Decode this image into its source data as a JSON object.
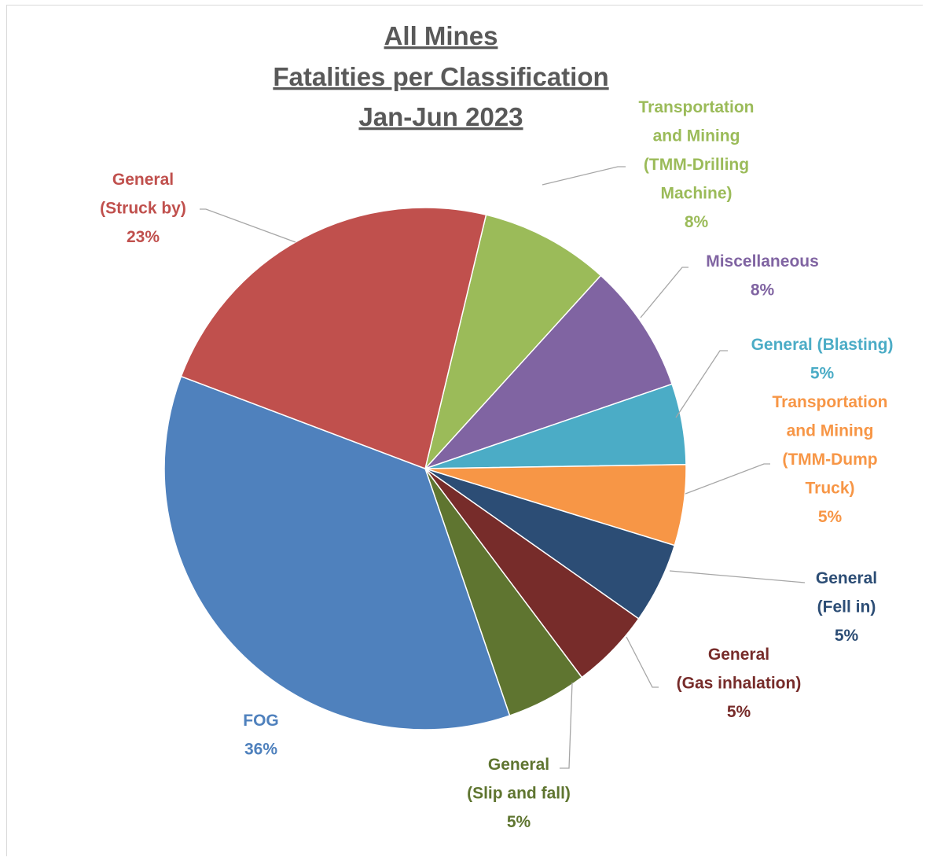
{
  "chart_data": {
    "type": "pie",
    "title": [
      "All Mines",
      "Fatalities per Classification",
      "Jan-Jun 2023"
    ],
    "slices": [
      {
        "name": "Transportation and Mining (TMM-Drilling Machine)",
        "value": 8,
        "label_lines": [
          "Transportation",
          "and Mining",
          "(TMM-Drilling",
          "Machine)"
        ],
        "pct": "8%",
        "color": "#9bbb59"
      },
      {
        "name": "Miscellaneous",
        "value": 8,
        "label_lines": [
          "Miscellaneous"
        ],
        "pct": "8%",
        "color": "#8064a2"
      },
      {
        "name": "General (Blasting)",
        "value": 5,
        "label_lines": [
          "General (Blasting)"
        ],
        "pct": "5%",
        "color": "#4bacc6"
      },
      {
        "name": "Transportation and Mining (TMM-Dump Truck)",
        "value": 5,
        "label_lines": [
          "Transportation",
          "and Mining",
          "(TMM-Dump",
          "Truck)"
        ],
        "pct": "5%",
        "color": "#f79646"
      },
      {
        "name": "General (Fell in)",
        "value": 5,
        "label_lines": [
          "General",
          "(Fell in)"
        ],
        "pct": "5%",
        "color": "#2c4d75"
      },
      {
        "name": "General (Gas inhalation)",
        "value": 5,
        "label_lines": [
          "General",
          "(Gas inhalation)"
        ],
        "pct": "5%",
        "color": "#772c2a"
      },
      {
        "name": "General (Slip and fall)",
        "value": 5,
        "label_lines": [
          "General",
          "(Slip and fall)"
        ],
        "pct": "5%",
        "color": "#5f7530"
      },
      {
        "name": "FOG",
        "value": 36,
        "label_lines": [
          "FOG"
        ],
        "pct": "36%",
        "color": "#4f81bd"
      },
      {
        "name": "General (Struck by)",
        "value": 23,
        "label_lines": [
          "General",
          "(Struck by)"
        ],
        "pct": "23%",
        "color": "#c0504d"
      }
    ]
  }
}
